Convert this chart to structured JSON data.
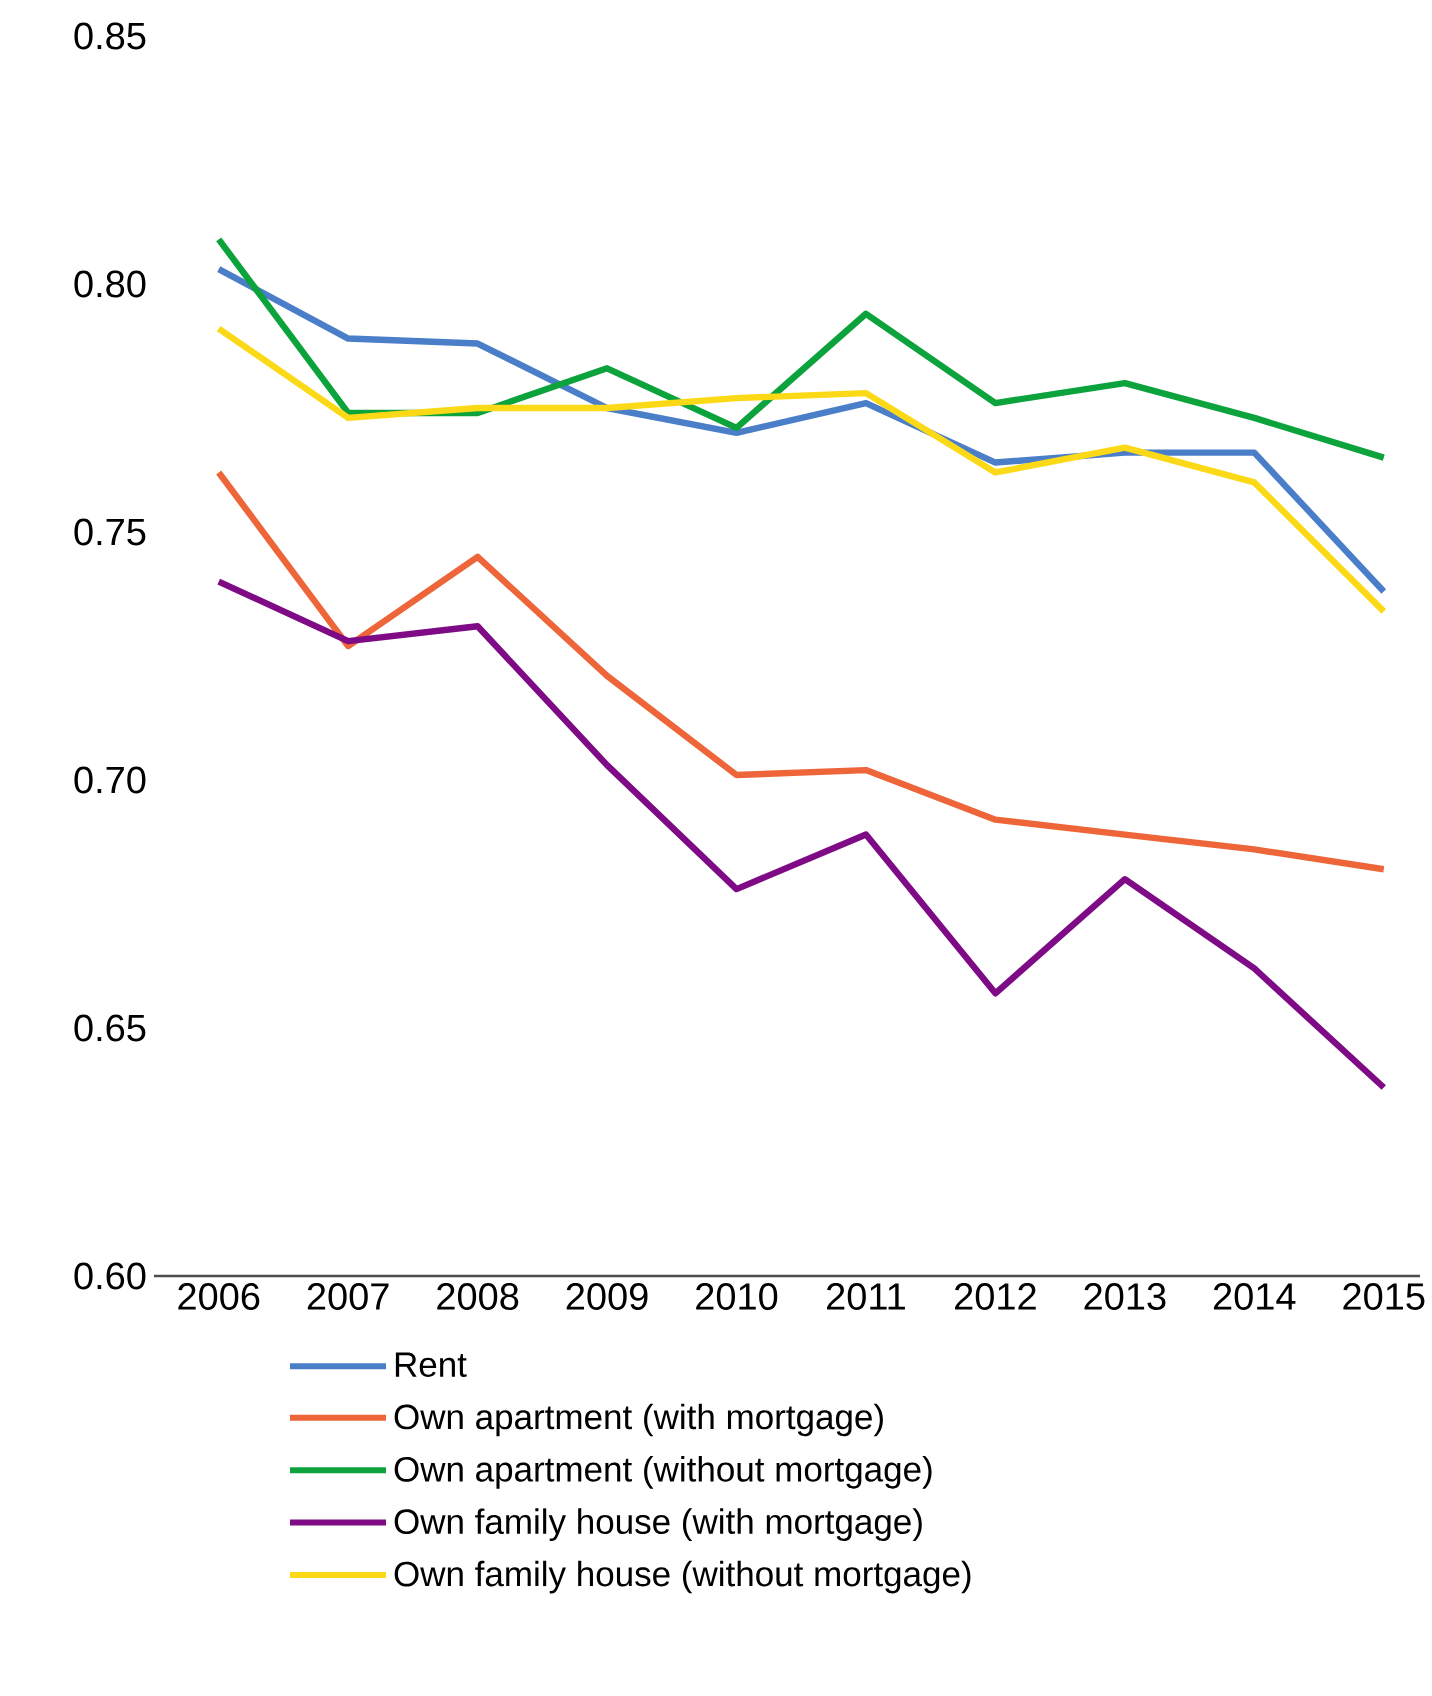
{
  "chart_data": {
    "type": "line",
    "categories": [
      "2006",
      "2007",
      "2008",
      "2009",
      "2010",
      "2011",
      "2012",
      "2013",
      "2014",
      "2015"
    ],
    "ylim": [
      0.6,
      0.85
    ],
    "yticks": [
      {
        "value": 0.6,
        "label": "0.60"
      },
      {
        "value": 0.65,
        "label": "0.65"
      },
      {
        "value": 0.7,
        "label": "0.70"
      },
      {
        "value": 0.75,
        "label": "0.75"
      },
      {
        "value": 0.8,
        "label": "0.80"
      },
      {
        "value": 0.85,
        "label": "0.85"
      }
    ],
    "legend": "bottom",
    "grid": false,
    "series": [
      {
        "name": "Rent",
        "color": "#4a7ec8",
        "values": [
          0.803,
          0.789,
          0.788,
          0.775,
          0.77,
          0.776,
          0.764,
          0.766,
          0.766,
          0.738
        ]
      },
      {
        "name": "Own apartment (with mortgage)",
        "color": "#ed6538",
        "values": [
          0.762,
          0.727,
          0.745,
          0.721,
          0.701,
          0.702,
          0.692,
          0.689,
          0.686,
          0.682
        ]
      },
      {
        "name": "Own apartment (without mortgage)",
        "color": "#0ca23c",
        "values": [
          0.809,
          0.774,
          0.774,
          0.783,
          0.771,
          0.794,
          0.776,
          0.78,
          0.773,
          0.765
        ]
      },
      {
        "name": "Own family house (with mortgage)",
        "color": "#7e0a86",
        "values": [
          0.74,
          0.728,
          0.731,
          0.703,
          0.678,
          0.689,
          0.657,
          0.68,
          0.662,
          0.638
        ]
      },
      {
        "name": "Own family house (without mortgage)",
        "color": "#fcd917",
        "values": [
          0.791,
          0.773,
          0.775,
          0.775,
          0.777,
          0.778,
          0.762,
          0.767,
          0.76,
          0.734
        ]
      }
    ]
  }
}
